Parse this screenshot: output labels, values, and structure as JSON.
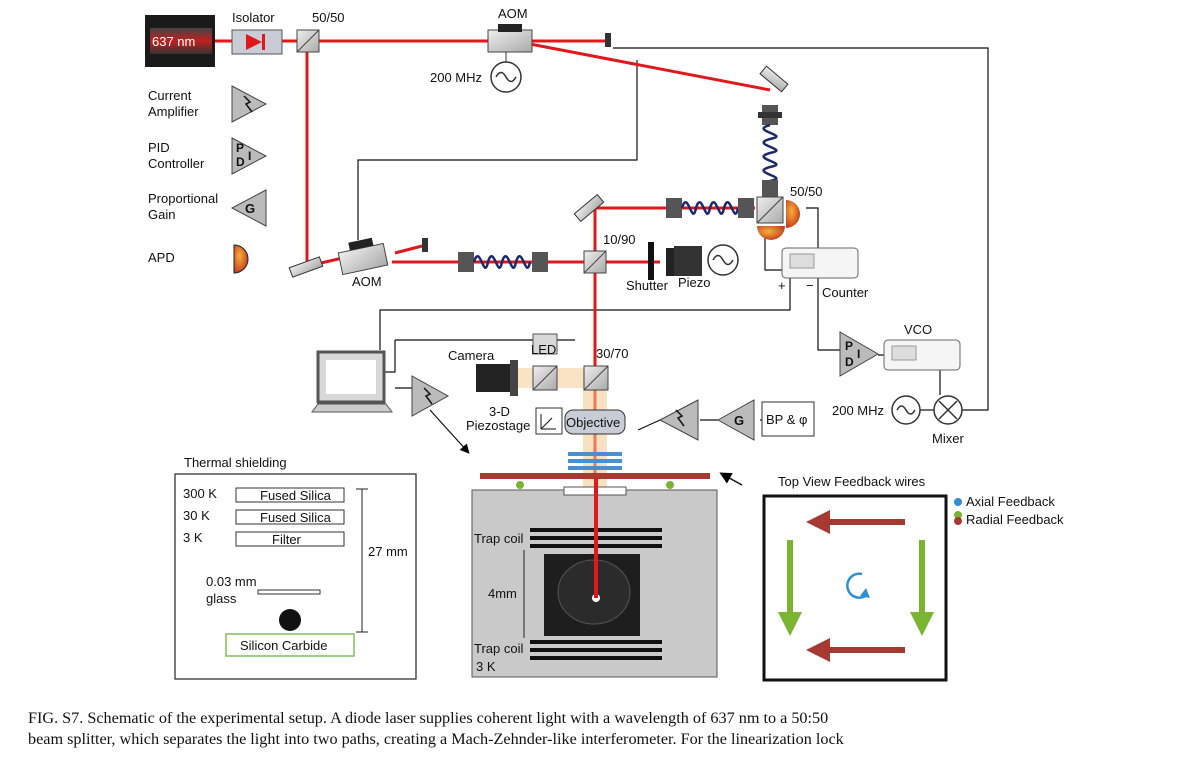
{
  "labels": {
    "laser": "637 nm",
    "isolator": "Isolator",
    "bs_top": "50/50",
    "aom_top": "AOM",
    "freq_top": "200 MHz",
    "aom_left": "AOM",
    "bs_right": "50/50",
    "bs_1090": "10/90",
    "shutter": "Shutter",
    "piezo": "Piezo",
    "counter": "Counter",
    "plus": "+",
    "minus": "−",
    "bs_3070": "30/70",
    "camera": "Camera",
    "led": "LED",
    "piezostage_1": "3-D",
    "piezostage_2": "Piezostage",
    "objective": "Objective",
    "vco": "VCO",
    "freq_mixer": "200 MHz",
    "mixer": "Mixer",
    "bp": "BP & φ",
    "gain_letter": "G",
    "pid_p": "P",
    "pid_i": "I",
    "pid_d": "D"
  },
  "legend": {
    "current_amp_1": "Current",
    "current_amp_2": "Amplifier",
    "pid_1": "PID",
    "pid_2": "Controller",
    "gain_1": "Proportional",
    "gain_2": "Gain",
    "apd": "APD"
  },
  "shielding": {
    "title": "Thermal shielding",
    "rows": [
      {
        "temp": "300 K",
        "material": "Fused Silica"
      },
      {
        "temp": "30 K",
        "material": "Fused Silica"
      },
      {
        "temp": "3 K",
        "material": "Filter"
      }
    ],
    "glass_1": "0.03 mm",
    "glass_2": "glass",
    "distance": "27 mm",
    "substrate": "Silicon Carbide"
  },
  "trap": {
    "coil_top": "Trap coil",
    "coil_bottom": "Trap coil",
    "gap": "4mm",
    "temp": "3 K"
  },
  "feedback": {
    "title": "Top View Feedback wires",
    "axial": "Axial Feedback",
    "radial": "Radial Feedback"
  },
  "colors": {
    "laser_beam": "#e0181b",
    "fiber": "#1c2a6b",
    "axial": "#2c8fd0",
    "radial_green": "#7ab532",
    "radial_red": "#a63a32",
    "shield_box": "#7fbf5a"
  },
  "caption": {
    "line1": "FIG. S7. Schematic of the experimental setup. A diode laser supplies coherent light with a wavelength of 637 nm to a 50:50",
    "line2": "beam splitter, which separates the light into two paths, creating a Mach-Zehnder-like interferometer. For the linearization lock"
  }
}
